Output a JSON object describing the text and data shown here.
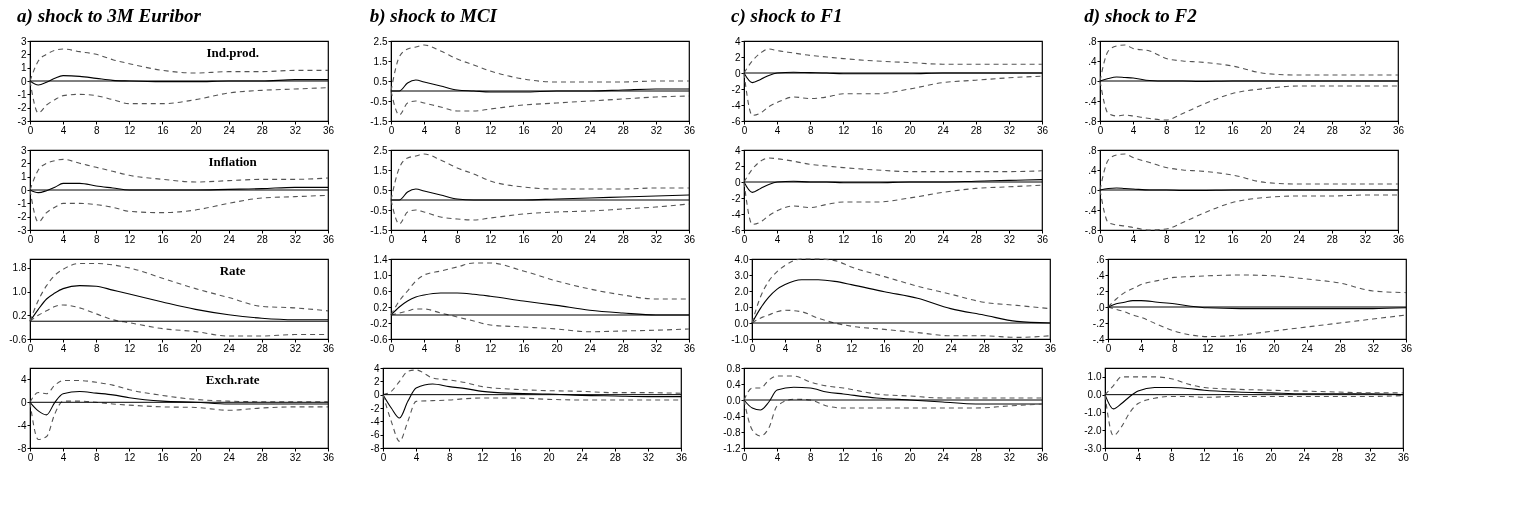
{
  "chart_data": [
    {
      "type": "line",
      "title": "a) shock to 3M Euribor",
      "annotations": [
        "Ind.prod."
      ],
      "x": [
        0,
        1,
        2,
        3,
        4,
        6,
        8,
        10,
        12,
        16,
        20,
        24,
        28,
        32,
        36
      ],
      "xlim": [
        0,
        36
      ],
      "xticks": [
        0,
        4,
        8,
        12,
        16,
        20,
        24,
        28,
        32,
        36
      ],
      "ylim": [
        -3,
        3
      ],
      "yticks": [
        -3,
        -2,
        -1,
        0,
        1,
        2,
        3
      ],
      "ref_lines": [
        {
          "axis": "y",
          "value": 0,
          "color": "#000000"
        }
      ],
      "series": [
        {
          "color": "#000000",
          "line_style": "solid",
          "values": [
            0,
            -0.3,
            -0.1,
            0.2,
            0.4,
            0.35,
            0.2,
            0.05,
            0,
            -0.05,
            -0.05,
            0,
            0,
            0.1,
            0.1
          ]
        },
        {
          "color": "#555555",
          "line_style": "dashed",
          "values": [
            0,
            1.5,
            2.0,
            2.3,
            2.4,
            2.2,
            2.0,
            1.6,
            1.3,
            0.8,
            0.6,
            0.7,
            0.7,
            0.8,
            0.8
          ]
        },
        {
          "color": "#555555",
          "line_style": "dashed",
          "values": [
            0,
            -2.4,
            -1.8,
            -1.4,
            -1.1,
            -1.0,
            -1.1,
            -1.4,
            -1.7,
            -1.7,
            -1.4,
            -0.9,
            -0.7,
            -0.6,
            -0.5
          ]
        }
      ]
    },
    {
      "type": "line",
      "title": "b) shock to MCI",
      "x": [
        0,
        1,
        2,
        3,
        4,
        6,
        8,
        10,
        12,
        16,
        20,
        24,
        28,
        32,
        36
      ],
      "xlim": [
        0,
        36
      ],
      "xticks": [
        0,
        4,
        8,
        12,
        16,
        20,
        24,
        28,
        32,
        36
      ],
      "ylim": [
        -1.5,
        2.5
      ],
      "yticks": [
        -1.5,
        -0.5,
        0.5,
        1.5,
        2.5
      ],
      "ref_lines": [
        {
          "axis": "y",
          "value": 0,
          "color": "#000000"
        }
      ],
      "series": [
        {
          "color": "#000000",
          "line_style": "solid",
          "values": [
            0,
            0,
            0.4,
            0.55,
            0.45,
            0.25,
            0.05,
            0,
            -0.05,
            -0.05,
            0,
            0,
            0.05,
            0.1,
            0.1
          ]
        },
        {
          "color": "#555555",
          "line_style": "dashed",
          "values": [
            0,
            1.7,
            2.1,
            2.2,
            2.3,
            2.0,
            1.6,
            1.3,
            1.0,
            0.6,
            0.45,
            0.45,
            0.45,
            0.5,
            0.5
          ]
        },
        {
          "color": "#555555",
          "line_style": "dashed",
          "values": [
            0,
            -1.2,
            -0.6,
            -0.5,
            -0.6,
            -0.8,
            -1.0,
            -1.0,
            -0.9,
            -0.7,
            -0.6,
            -0.5,
            -0.4,
            -0.3,
            -0.25
          ]
        }
      ]
    },
    {
      "type": "line",
      "title": "c) shock to F1",
      "x": [
        0,
        1,
        2,
        3,
        4,
        6,
        8,
        10,
        12,
        16,
        20,
        24,
        28,
        32,
        36
      ],
      "xlim": [
        0,
        36
      ],
      "xticks": [
        0,
        4,
        8,
        12,
        16,
        20,
        24,
        28,
        32,
        36
      ],
      "ylim": [
        -6,
        4
      ],
      "yticks": [
        -6,
        -4,
        -2,
        0,
        2,
        4
      ],
      "ref_lines": [
        {
          "axis": "y",
          "value": 0,
          "color": "#000000"
        }
      ],
      "series": [
        {
          "color": "#000000",
          "line_style": "solid",
          "values": [
            0,
            -1.2,
            -0.8,
            -0.3,
            0,
            0.1,
            0.05,
            0,
            -0.1,
            -0.1,
            -0.1,
            0,
            0,
            0,
            0
          ]
        },
        {
          "color": "#555555",
          "line_style": "dashed",
          "values": [
            0,
            1.5,
            2.5,
            3.0,
            2.8,
            2.5,
            2.2,
            2.0,
            1.8,
            1.5,
            1.3,
            1.1,
            1.1,
            1.1,
            1.1
          ]
        },
        {
          "color": "#555555",
          "line_style": "dashed",
          "values": [
            0,
            -5.3,
            -5,
            -4.2,
            -3.7,
            -3,
            -3.2,
            -3,
            -2.6,
            -2.6,
            -2.0,
            -1.2,
            -0.9,
            -0.6,
            -0.4
          ]
        }
      ]
    },
    {
      "type": "line",
      "title": "d) shock to F2",
      "x": [
        0,
        1,
        2,
        3,
        4,
        6,
        8,
        10,
        12,
        16,
        20,
        24,
        28,
        32,
        36
      ],
      "xlim": [
        0,
        36
      ],
      "xticks": [
        0,
        4,
        8,
        12,
        16,
        20,
        24,
        28,
        32,
        36
      ],
      "ylim": [
        -0.8,
        0.8
      ],
      "yticks": [
        {
          "value": -0.8,
          "label": "-.8"
        },
        {
          "value": -0.4,
          "label": "-.4"
        },
        {
          "value": 0,
          "label": ".0"
        },
        {
          "value": 0.4,
          "label": ".4"
        },
        {
          "value": 0.8,
          "label": ".8"
        }
      ],
      "ref_lines": [
        {
          "axis": "y",
          "value": 0,
          "color": "#000000"
        }
      ],
      "series": [
        {
          "color": "#000000",
          "line_style": "solid",
          "values": [
            0,
            0.05,
            0.08,
            0.07,
            0.06,
            0.01,
            0,
            0,
            -0.01,
            0,
            0,
            0,
            0,
            0,
            0
          ]
        },
        {
          "color": "#555555",
          "line_style": "dashed",
          "values": [
            0,
            0.6,
            0.7,
            0.72,
            0.65,
            0.6,
            0.45,
            0.4,
            0.38,
            0.3,
            0.15,
            0.12,
            0.12,
            0.12,
            0.12
          ]
        },
        {
          "color": "#555555",
          "line_style": "dashed",
          "values": [
            0,
            -0.65,
            -0.7,
            -0.68,
            -0.7,
            -0.75,
            -0.78,
            -0.65,
            -0.5,
            -0.25,
            -0.15,
            -0.1,
            -0.1,
            -0.1,
            -0.1
          ]
        }
      ]
    },
    {
      "type": "line",
      "annotations": [
        "Inflation"
      ],
      "x": [
        0,
        1,
        2,
        3,
        4,
        6,
        8,
        10,
        12,
        16,
        20,
        24,
        28,
        32,
        36
      ],
      "xlim": [
        0,
        36
      ],
      "xticks": [
        0,
        4,
        8,
        12,
        16,
        20,
        24,
        28,
        32,
        36
      ],
      "ylim": [
        -3,
        3
      ],
      "yticks": [
        -3,
        -2,
        -1,
        0,
        1,
        2,
        3
      ],
      "ref_lines": [
        {
          "axis": "y",
          "value": 0,
          "color": "#000000"
        }
      ],
      "series": [
        {
          "color": "#000000",
          "line_style": "solid",
          "values": [
            0,
            -0.2,
            -0.05,
            0.2,
            0.5,
            0.5,
            0.3,
            0.15,
            0,
            0,
            0,
            0.05,
            0.1,
            0.2,
            0.2
          ]
        },
        {
          "color": "#555555",
          "line_style": "dashed",
          "values": [
            0,
            1.5,
            2.0,
            2.2,
            2.3,
            2.0,
            1.7,
            1.4,
            1.1,
            0.8,
            0.6,
            0.7,
            0.8,
            0.8,
            0.9
          ]
        },
        {
          "color": "#555555",
          "line_style": "dashed",
          "values": [
            0,
            -2.4,
            -1.7,
            -1.3,
            -1.0,
            -1.0,
            -1.1,
            -1.3,
            -1.6,
            -1.7,
            -1.5,
            -1.0,
            -0.6,
            -0.5,
            -0.4
          ]
        }
      ]
    },
    {
      "type": "line",
      "x": [
        0,
        1,
        2,
        3,
        4,
        6,
        8,
        10,
        12,
        16,
        20,
        24,
        28,
        32,
        36
      ],
      "xlim": [
        0,
        36
      ],
      "xticks": [
        0,
        4,
        8,
        12,
        16,
        20,
        24,
        28,
        32,
        36
      ],
      "ylim": [
        -1.5,
        2.5
      ],
      "yticks": [
        -1.5,
        -0.5,
        0.5,
        1.5,
        2.5
      ],
      "ref_lines": [
        {
          "axis": "y",
          "value": 0,
          "color": "#000000"
        }
      ],
      "series": [
        {
          "color": "#000000",
          "line_style": "solid",
          "values": [
            0,
            0,
            0.4,
            0.55,
            0.45,
            0.25,
            0.05,
            0,
            0,
            0,
            0.05,
            0.1,
            0.15,
            0.2,
            0.25
          ]
        },
        {
          "color": "#555555",
          "line_style": "dashed",
          "values": [
            0,
            1.6,
            2.1,
            2.2,
            2.3,
            2.0,
            1.6,
            1.3,
            0.95,
            0.65,
            0.55,
            0.55,
            0.55,
            0.6,
            0.6
          ]
        },
        {
          "color": "#555555",
          "line_style": "dashed",
          "values": [
            0,
            -1.2,
            -0.6,
            -0.5,
            -0.6,
            -0.85,
            -0.95,
            -1.0,
            -0.9,
            -0.7,
            -0.6,
            -0.55,
            -0.45,
            -0.35,
            -0.2
          ]
        }
      ]
    },
    {
      "type": "line",
      "x": [
        0,
        1,
        2,
        3,
        4,
        6,
        8,
        10,
        12,
        16,
        20,
        24,
        28,
        32,
        36
      ],
      "xlim": [
        0,
        36
      ],
      "xticks": [
        0,
        4,
        8,
        12,
        16,
        20,
        24,
        28,
        32,
        36
      ],
      "ylim": [
        -6,
        4
      ],
      "yticks": [
        -6,
        -4,
        -2,
        0,
        2,
        4
      ],
      "ref_lines": [
        {
          "axis": "y",
          "value": 0,
          "color": "#000000"
        }
      ],
      "series": [
        {
          "color": "#000000",
          "line_style": "solid",
          "values": [
            0,
            -1.3,
            -0.8,
            -0.3,
            0,
            0.1,
            0,
            0,
            -0.1,
            -0.1,
            0,
            0,
            0.1,
            0.2,
            0.3
          ]
        },
        {
          "color": "#555555",
          "line_style": "dashed",
          "values": [
            0,
            1.6,
            2.6,
            3.0,
            2.9,
            2.6,
            2.2,
            2.0,
            1.8,
            1.5,
            1.3,
            1.3,
            1.3,
            1.3,
            1.4
          ]
        },
        {
          "color": "#555555",
          "line_style": "dashed",
          "values": [
            0,
            -5.3,
            -5,
            -4.2,
            -3.6,
            -3,
            -3.2,
            -2.8,
            -2.5,
            -2.5,
            -2.0,
            -1.3,
            -0.8,
            -0.6,
            -0.4
          ]
        }
      ]
    },
    {
      "type": "line",
      "x": [
        0,
        1,
        2,
        3,
        4,
        6,
        8,
        10,
        12,
        16,
        20,
        24,
        28,
        32,
        36
      ],
      "xlim": [
        0,
        36
      ],
      "xticks": [
        0,
        4,
        8,
        12,
        16,
        20,
        24,
        28,
        32,
        36
      ],
      "ylim": [
        -0.8,
        0.8
      ],
      "yticks": [
        {
          "value": -0.8,
          "label": "-.8"
        },
        {
          "value": -0.4,
          "label": "-.4"
        },
        {
          "value": 0,
          "label": ".0"
        },
        {
          "value": 0.4,
          "label": ".4"
        },
        {
          "value": 0.8,
          "label": ".8"
        }
      ],
      "ref_lines": [
        {
          "axis": "y",
          "value": 0,
          "color": "#000000"
        }
      ],
      "series": [
        {
          "color": "#000000",
          "line_style": "solid",
          "values": [
            0,
            0.03,
            0.04,
            0.03,
            0.02,
            0,
            0,
            -0.01,
            -0.01,
            0,
            0,
            0,
            0,
            0,
            0
          ]
        },
        {
          "color": "#555555",
          "line_style": "dashed",
          "values": [
            0,
            0.6,
            0.7,
            0.72,
            0.65,
            0.55,
            0.45,
            0.4,
            0.38,
            0.3,
            0.15,
            0.12,
            0.12,
            0.12,
            0.12
          ]
        },
        {
          "color": "#555555",
          "line_style": "dashed",
          "values": [
            0,
            -0.65,
            -0.7,
            -0.72,
            -0.75,
            -0.8,
            -0.78,
            -0.65,
            -0.5,
            -0.25,
            -0.15,
            -0.12,
            -0.12,
            -0.1,
            -0.1
          ]
        }
      ]
    },
    {
      "type": "line",
      "annotations": [
        "Rate"
      ],
      "x": [
        0,
        1,
        2,
        3,
        4,
        6,
        8,
        10,
        12,
        16,
        20,
        24,
        28,
        32,
        36
      ],
      "xlim": [
        0,
        36
      ],
      "xticks": [
        0,
        4,
        8,
        12,
        16,
        20,
        24,
        28,
        32,
        36
      ],
      "ylim": [
        -0.6,
        2.1
      ],
      "yticks": [
        -0.6,
        0.2,
        {
          "value": 1,
          "label": "1.0"
        },
        1.8
      ],
      "ref_lines": [
        {
          "axis": "y",
          "value": 0,
          "color": "#000000"
        }
      ],
      "series": [
        {
          "color": "#000000",
          "line_style": "solid",
          "values": [
            0,
            0.4,
            0.75,
            0.95,
            1.1,
            1.2,
            1.18,
            1.05,
            0.92,
            0.65,
            0.4,
            0.22,
            0.1,
            0.05,
            0.05
          ]
        },
        {
          "color": "#555555",
          "line_style": "dashed",
          "values": [
            0,
            0.7,
            1.2,
            1.55,
            1.75,
            1.95,
            1.95,
            1.9,
            1.8,
            1.45,
            1.1,
            0.8,
            0.5,
            0.45,
            0.35
          ]
        },
        {
          "color": "#555555",
          "line_style": "dashed",
          "values": [
            0,
            0.2,
            0.35,
            0.5,
            0.55,
            0.45,
            0.25,
            0.05,
            -0.05,
            -0.25,
            -0.35,
            -0.5,
            -0.5,
            -0.45,
            -0.45
          ]
        }
      ]
    },
    {
      "type": "line",
      "x": [
        0,
        1,
        2,
        3,
        4,
        6,
        8,
        10,
        12,
        16,
        20,
        24,
        28,
        32,
        36
      ],
      "xlim": [
        0,
        36
      ],
      "xticks": [
        0,
        4,
        8,
        12,
        16,
        20,
        24,
        28,
        32,
        36
      ],
      "ylim": [
        -0.6,
        1.4
      ],
      "yticks": [
        -0.6,
        -0.2,
        0.2,
        0.6,
        {
          "value": 1,
          "label": "1.0"
        },
        1.4
      ],
      "ref_lines": [
        {
          "axis": "y",
          "value": 0,
          "color": "#000000"
        }
      ],
      "series": [
        {
          "color": "#000000",
          "line_style": "solid",
          "values": [
            0,
            0.2,
            0.35,
            0.45,
            0.5,
            0.55,
            0.55,
            0.52,
            0.47,
            0.35,
            0.24,
            0.12,
            0.05,
            0,
            0
          ]
        },
        {
          "color": "#555555",
          "line_style": "dashed",
          "values": [
            0,
            0.35,
            0.6,
            0.85,
            1.0,
            1.1,
            1.2,
            1.3,
            1.3,
            1.1,
            0.85,
            0.65,
            0.5,
            0.4,
            0.4
          ]
        },
        {
          "color": "#555555",
          "line_style": "dashed",
          "values": [
            0,
            0.05,
            0.1,
            0.15,
            0.15,
            0.05,
            -0.05,
            -0.15,
            -0.25,
            -0.3,
            -0.35,
            -0.42,
            -0.4,
            -0.38,
            -0.35
          ]
        }
      ]
    },
    {
      "type": "line",
      "x": [
        0,
        1,
        2,
        3,
        4,
        6,
        8,
        10,
        12,
        16,
        20,
        24,
        28,
        32,
        36
      ],
      "xlim": [
        0,
        36
      ],
      "xticks": [
        0,
        4,
        8,
        12,
        16,
        20,
        24,
        28,
        32,
        36
      ],
      "ylim": [
        -1,
        4
      ],
      "yticks": [
        {
          "value": -1,
          "label": "-1.0"
        },
        {
          "value": 0,
          "label": "0.0"
        },
        {
          "value": 1,
          "label": "1.0"
        },
        {
          "value": 2,
          "label": "2.0"
        },
        {
          "value": 3,
          "label": "3.0"
        },
        {
          "value": 4,
          "label": "4.0"
        }
      ],
      "ref_lines": [
        {
          "axis": "y",
          "value": 0,
          "color": "#000000"
        }
      ],
      "series": [
        {
          "color": "#000000",
          "line_style": "solid",
          "values": [
            0,
            0.9,
            1.6,
            2.1,
            2.4,
            2.7,
            2.7,
            2.6,
            2.4,
            1.95,
            1.55,
            0.9,
            0.5,
            0.1,
            0
          ]
        },
        {
          "color": "#555555",
          "line_style": "dashed",
          "values": [
            0,
            1.6,
            2.6,
            3.2,
            3.6,
            4.0,
            4.0,
            3.9,
            3.5,
            2.9,
            2.3,
            1.8,
            1.3,
            1.1,
            0.9
          ]
        },
        {
          "color": "#555555",
          "line_style": "dashed",
          "values": [
            0,
            0.3,
            0.5,
            0.7,
            0.8,
            0.7,
            0.3,
            0,
            -0.2,
            -0.4,
            -0.6,
            -0.8,
            -0.8,
            -0.9,
            -0.8
          ]
        }
      ]
    },
    {
      "type": "line",
      "x": [
        0,
        1,
        2,
        3,
        4,
        6,
        8,
        10,
        12,
        16,
        20,
        24,
        28,
        32,
        36
      ],
      "xlim": [
        0,
        36
      ],
      "xticks": [
        0,
        4,
        8,
        12,
        16,
        20,
        24,
        28,
        32,
        36
      ],
      "ylim": [
        -0.4,
        0.6
      ],
      "yticks": [
        {
          "value": -0.4,
          "label": "-.4"
        },
        {
          "value": -0.2,
          "label": "-.2"
        },
        {
          "value": 0,
          "label": ".0"
        },
        {
          "value": 0.2,
          "label": ".2"
        },
        {
          "value": 0.4,
          "label": ".4"
        },
        {
          "value": 0.6,
          "label": ".6"
        }
      ],
      "ref_lines": [
        {
          "axis": "y",
          "value": 0,
          "color": "#000000"
        }
      ],
      "series": [
        {
          "color": "#000000",
          "line_style": "solid",
          "values": [
            0,
            0.04,
            0.06,
            0.08,
            0.08,
            0.06,
            0.04,
            0.01,
            -0.01,
            -0.02,
            -0.02,
            -0.02,
            -0.02,
            -0.02,
            -0.01
          ]
        },
        {
          "color": "#555555",
          "line_style": "dashed",
          "values": [
            0,
            0.1,
            0.18,
            0.23,
            0.28,
            0.33,
            0.37,
            0.38,
            0.39,
            0.4,
            0.39,
            0.35,
            0.3,
            0.2,
            0.18
          ]
        },
        {
          "color": "#555555",
          "line_style": "dashed",
          "values": [
            0,
            -0.03,
            -0.06,
            -0.1,
            -0.13,
            -0.22,
            -0.3,
            -0.35,
            -0.37,
            -0.35,
            -0.3,
            -0.25,
            -0.2,
            -0.15,
            -0.1
          ]
        }
      ]
    },
    {
      "type": "line",
      "annotations": [
        "Exch.rate"
      ],
      "x": [
        0,
        1,
        2,
        3,
        4,
        6,
        8,
        10,
        12,
        16,
        20,
        24,
        28,
        32,
        36
      ],
      "xlim": [
        0,
        36
      ],
      "xticks": [
        0,
        4,
        8,
        12,
        16,
        20,
        24,
        28,
        32,
        36
      ],
      "ylim": [
        -8,
        6
      ],
      "yticks": [
        -8,
        -4,
        0,
        4
      ],
      "ref_lines": [
        {
          "axis": "y",
          "value": 0,
          "color": "#000000"
        }
      ],
      "series": [
        {
          "color": "#000000",
          "line_style": "solid",
          "values": [
            0,
            -1.5,
            -2.2,
            0,
            1.5,
            1.9,
            1.6,
            1.3,
            0.8,
            0.2,
            0,
            -0.3,
            -0.3,
            -0.3,
            -0.3
          ]
        },
        {
          "color": "#555555",
          "line_style": "dashed",
          "values": [
            0,
            1.7,
            1.5,
            3,
            3.8,
            3.8,
            3.5,
            3,
            2.2,
            1.2,
            0.5,
            0.2,
            0.1,
            0.1,
            0.1
          ]
        },
        {
          "color": "#555555",
          "line_style": "dashed",
          "values": [
            0,
            -6.5,
            -6,
            -2,
            0.2,
            0.2,
            0,
            -0.3,
            -0.5,
            -0.8,
            -0.9,
            -1.4,
            -1,
            -0.8,
            -0.8
          ]
        }
      ]
    },
    {
      "type": "line",
      "x": [
        0,
        1,
        2,
        3,
        4,
        6,
        8,
        10,
        12,
        16,
        20,
        24,
        28,
        32,
        36
      ],
      "xlim": [
        0,
        36
      ],
      "xticks": [
        0,
        4,
        8,
        12,
        16,
        20,
        24,
        28,
        32,
        36
      ],
      "ylim": [
        -8,
        4
      ],
      "yticks": [
        -8,
        -6,
        -4,
        -2,
        0,
        2,
        4
      ],
      "ref_lines": [
        {
          "axis": "y",
          "value": 0,
          "color": "#000000"
        }
      ],
      "series": [
        {
          "color": "#000000",
          "line_style": "solid",
          "values": [
            0,
            -2,
            -3.5,
            -1,
            1,
            1.6,
            1.2,
            0.9,
            0.5,
            0.2,
            0.1,
            -0.1,
            -0.2,
            -0.3,
            -0.3
          ]
        },
        {
          "color": "#555555",
          "line_style": "dashed",
          "values": [
            0,
            0.5,
            2,
            3.5,
            3.7,
            2.5,
            2.2,
            1.8,
            1.2,
            0.8,
            0.6,
            0.5,
            0.3,
            0.3,
            0.2
          ]
        },
        {
          "color": "#555555",
          "line_style": "dashed",
          "values": [
            0,
            -4,
            -7,
            -4,
            -1,
            -0.9,
            -0.8,
            -0.6,
            -0.5,
            -0.5,
            -0.7,
            -0.8,
            -0.8,
            -0.8,
            -0.8
          ]
        }
      ]
    },
    {
      "type": "line",
      "x": [
        0,
        1,
        2,
        3,
        4,
        6,
        8,
        10,
        12,
        16,
        20,
        24,
        28,
        32,
        36
      ],
      "xlim": [
        0,
        36
      ],
      "xticks": [
        0,
        4,
        8,
        12,
        16,
        20,
        24,
        28,
        32,
        36
      ],
      "ylim": [
        -1.2,
        0.8
      ],
      "yticks": [
        -1.2,
        -0.8,
        -0.4,
        {
          "value": 0,
          "label": "0.0"
        },
        0.4,
        0.8
      ],
      "ref_lines": [
        {
          "axis": "y",
          "value": 0,
          "color": "#000000"
        }
      ],
      "series": [
        {
          "color": "#000000",
          "line_style": "solid",
          "values": [
            0,
            -0.2,
            -0.25,
            -0.05,
            0.25,
            0.32,
            0.3,
            0.2,
            0.15,
            0.05,
            0,
            -0.05,
            -0.1,
            -0.1,
            -0.1
          ]
        },
        {
          "color": "#555555",
          "line_style": "dashed",
          "values": [
            0,
            0.3,
            0.3,
            0.5,
            0.6,
            0.6,
            0.45,
            0.35,
            0.3,
            0.15,
            0.1,
            0.05,
            0.05,
            0.05,
            0.05
          ]
        },
        {
          "color": "#555555",
          "line_style": "dashed",
          "values": [
            0,
            -0.75,
            -0.9,
            -0.7,
            -0.15,
            0.02,
            0,
            -0.15,
            -0.2,
            -0.2,
            -0.2,
            -0.2,
            -0.2,
            -0.15,
            -0.1
          ]
        }
      ]
    },
    {
      "type": "line",
      "x": [
        0,
        1,
        2,
        3,
        4,
        6,
        8,
        10,
        12,
        16,
        20,
        24,
        28,
        32,
        36
      ],
      "xlim": [
        0,
        36
      ],
      "xticks": [
        0,
        4,
        8,
        12,
        16,
        20,
        24,
        28,
        32,
        36
      ],
      "ylim": [
        -3,
        1.5
      ],
      "yticks": [
        {
          "value": -3,
          "label": "-3.0"
        },
        {
          "value": -2,
          "label": "-2.0"
        },
        {
          "value": -1,
          "label": "-1.0"
        },
        {
          "value": 0,
          "label": "0.0"
        },
        {
          "value": 1,
          "label": "1.0"
        }
      ],
      "ref_lines": [
        {
          "axis": "y",
          "value": 0,
          "color": "#000000"
        }
      ],
      "series": [
        {
          "color": "#000000",
          "line_style": "solid",
          "values": [
            0,
            -0.8,
            -0.5,
            -0.1,
            0.2,
            0.4,
            0.4,
            0.35,
            0.25,
            0.15,
            0.1,
            0.05,
            0.05,
            0.05,
            0
          ]
        },
        {
          "color": "#555555",
          "line_style": "dashed",
          "values": [
            0,
            0.5,
            1.0,
            1.0,
            1.0,
            1.0,
            0.9,
            0.6,
            0.4,
            0.3,
            0.25,
            0.2,
            0.15,
            0.1,
            0.1
          ]
        },
        {
          "color": "#555555",
          "line_style": "dashed",
          "values": [
            0,
            -2.3,
            -1.8,
            -1.0,
            -0.5,
            -0.2,
            -0.1,
            -0.1,
            -0.15,
            -0.1,
            -0.1,
            -0.1,
            -0.1,
            -0.1,
            -0.05
          ]
        }
      ]
    }
  ]
}
